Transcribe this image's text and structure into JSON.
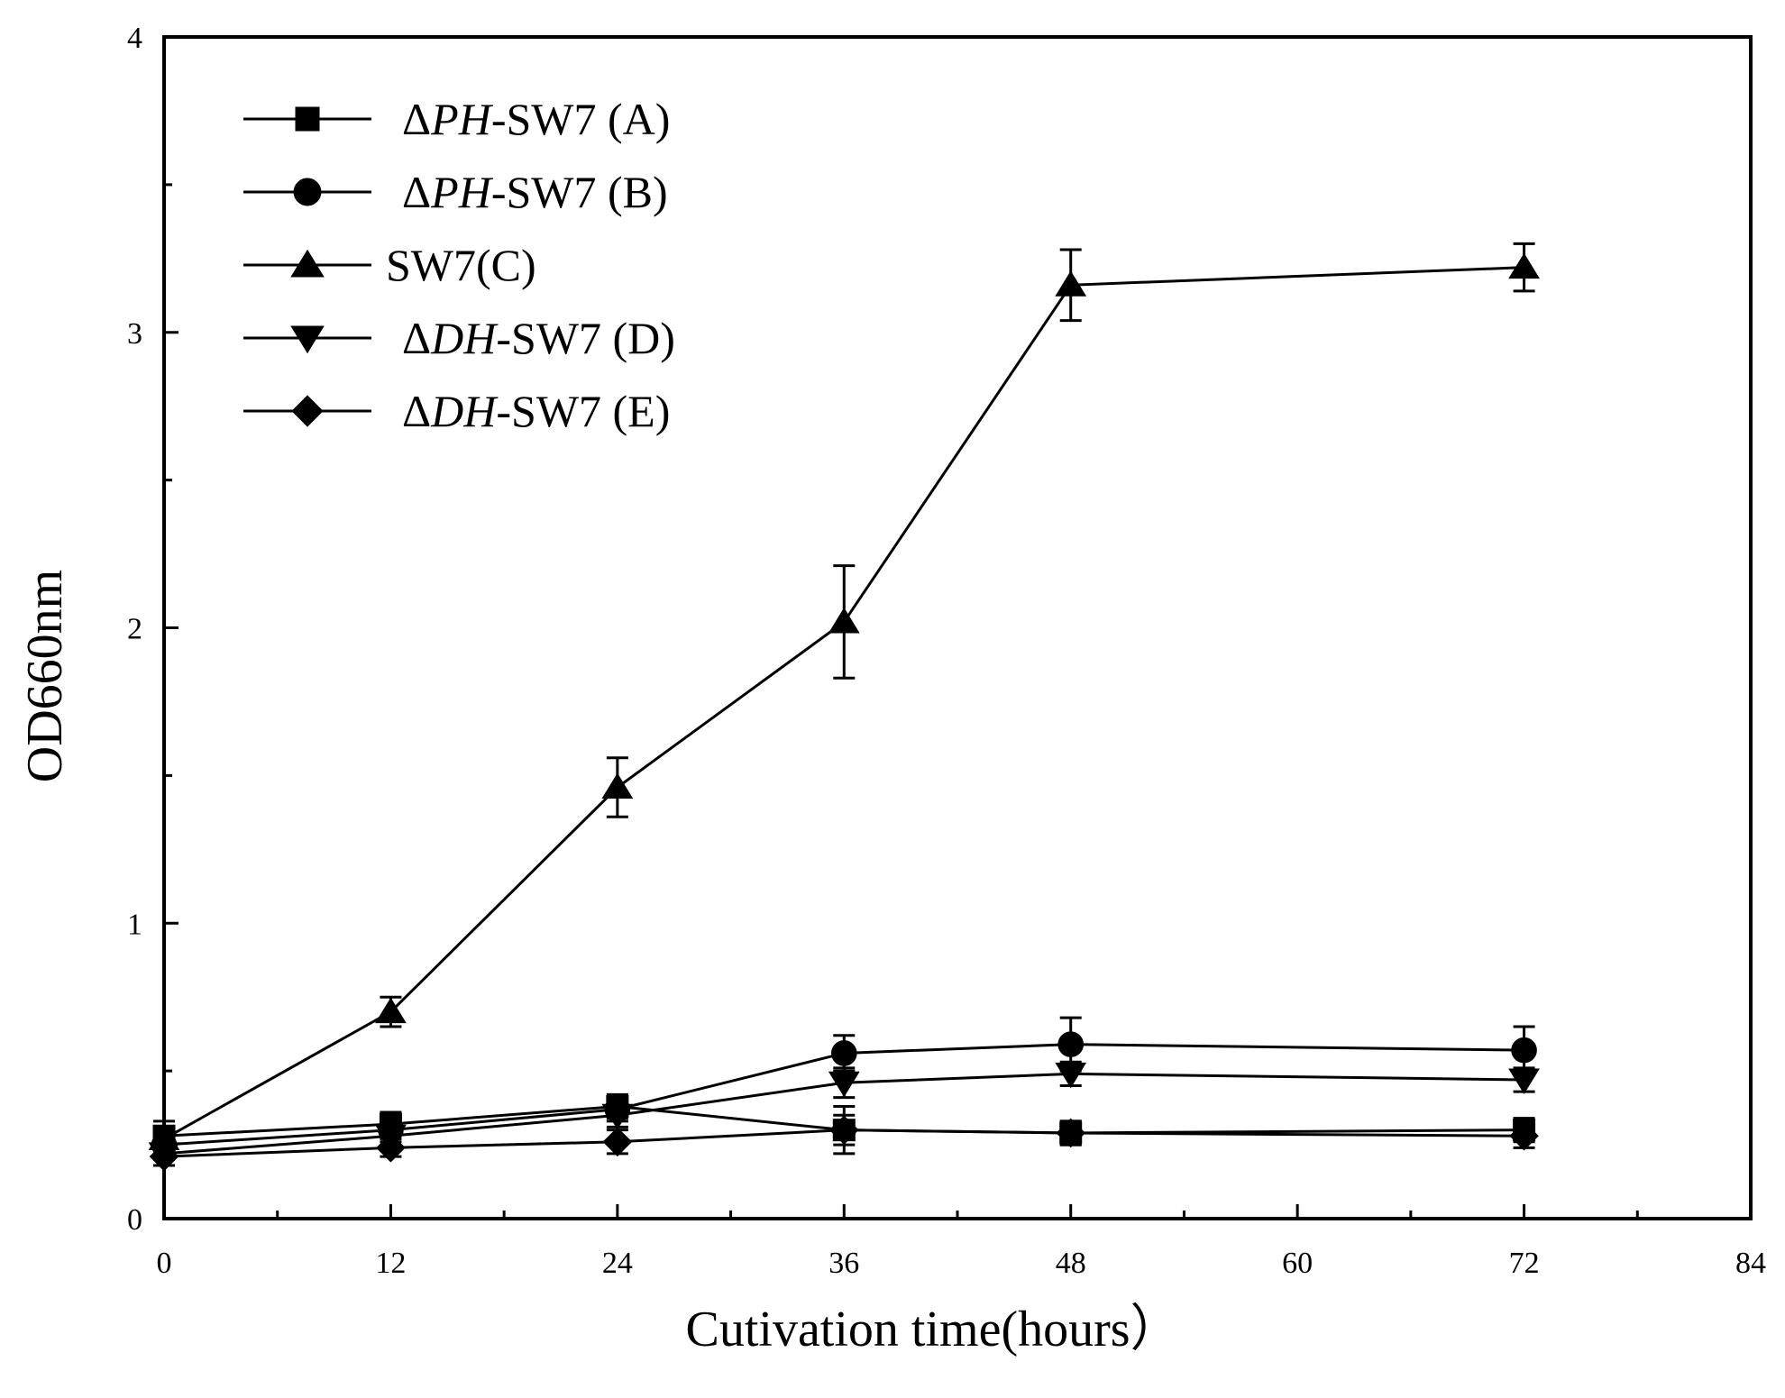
{
  "chart_data": {
    "type": "line",
    "title": "",
    "xlabel": "Cutivation time(hours）",
    "ylabel": "OD660nm",
    "xlim": [
      0,
      84
    ],
    "ylim": [
      0,
      4
    ],
    "x_ticks": [
      0,
      12,
      24,
      36,
      48,
      60,
      72,
      84
    ],
    "y_ticks": [
      0,
      1,
      2,
      3,
      4
    ],
    "grid": false,
    "legend_position": "top-left",
    "x": [
      0,
      12,
      24,
      36,
      48,
      72
    ],
    "series": [
      {
        "name": "ΔPH-SW7 (A)",
        "legend": {
          "prefix": "Δ",
          "italic": "PH",
          "suffix": "-SW7 (A)"
        },
        "marker": "square",
        "values": [
          0.28,
          0.32,
          0.38,
          0.3,
          0.29,
          0.3
        ],
        "errors": [
          0.05,
          0.04,
          0.04,
          0.05,
          0.04,
          0.04
        ]
      },
      {
        "name": "ΔPH-SW7 (B)",
        "legend": {
          "prefix": "Δ",
          "italic": "PH",
          "suffix": "-SW7 (B)"
        },
        "marker": "circle",
        "values": [
          0.25,
          0.3,
          0.37,
          0.56,
          0.59,
          0.57
        ],
        "errors": [
          0.05,
          0.04,
          0.04,
          0.06,
          0.09,
          0.08
        ]
      },
      {
        "name": "SW7(C)",
        "legend": {
          "prefix": "",
          "italic": "",
          "suffix": "SW7(C)"
        },
        "marker": "triangle-up",
        "values": [
          0.27,
          0.7,
          1.46,
          2.02,
          3.16,
          3.22
        ],
        "errors": [
          0.04,
          0.05,
          0.1,
          0.19,
          0.12,
          0.08
        ]
      },
      {
        "name": "ΔDH-SW7 (D)",
        "legend": {
          "prefix": "Δ",
          "italic": "DH",
          "suffix": "-SW7 (D)"
        },
        "marker": "triangle-down",
        "values": [
          0.22,
          0.28,
          0.35,
          0.46,
          0.49,
          0.47
        ],
        "errors": [
          0.04,
          0.04,
          0.04,
          0.05,
          0.04,
          0.04
        ]
      },
      {
        "name": "ΔDH-SW7 (E)",
        "legend": {
          "prefix": "Δ",
          "italic": "DH",
          "suffix": "-SW7 (E)"
        },
        "marker": "diamond",
        "values": [
          0.21,
          0.24,
          0.26,
          0.3,
          0.29,
          0.28
        ],
        "errors": [
          0.03,
          0.03,
          0.04,
          0.08,
          0.04,
          0.04
        ]
      }
    ]
  }
}
